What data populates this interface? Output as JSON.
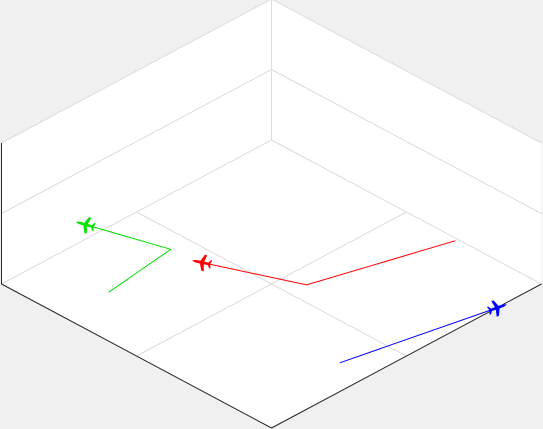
{
  "chart_data": {
    "type": "line",
    "title": "",
    "projection": "isometric-3d",
    "xlabel": "",
    "ylabel": "",
    "zlabel": "",
    "grid": true,
    "axes_box": true,
    "xlim": [
      0,
      100
    ],
    "ylim": [
      0,
      100
    ],
    "zlim": [
      0,
      100
    ],
    "colors": {
      "background": "#f0f0f0",
      "axes_face": "#ffffff",
      "axis_line": "#262626",
      "grid_line": "#dcdcdc"
    },
    "series": [
      {
        "color": "#ff0000",
        "marker": "aircraft",
        "points": [
          [
            99.1,
            31.0,
            0
          ],
          [
            56.2,
            43.2,
            0
          ],
          [
            44.5,
            70.5,
            0
          ]
        ]
      },
      {
        "color": "#00e000",
        "marker": "aircraft",
        "points": [
          [
            17.0,
            77.3,
            0
          ],
          [
            43.4,
            80.7,
            0
          ],
          [
            36.1,
            105.2,
            0
          ]
        ]
      },
      {
        "color": "#0000ff",
        "marker": "aircraft",
        "points": [
          [
            35.3,
            10.0,
            0
          ],
          [
            83.8,
            -0.1,
            0
          ]
        ]
      }
    ]
  }
}
